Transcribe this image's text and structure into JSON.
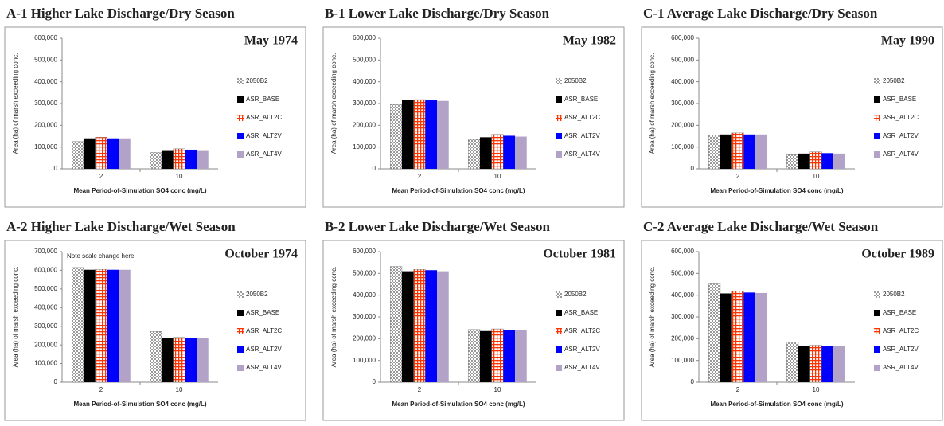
{
  "chart_data": [
    {
      "type": "bar",
      "panel_title": "A-1  Higher Lake Discharge/Dry Season",
      "title": "May 1974",
      "ylabel": "Area (ha) of marsh exceeding conc.",
      "xlabel": "Mean Period-of-Simulation SO4 conc (mg/L)",
      "categories": [
        "2",
        "10"
      ],
      "series": [
        {
          "name": "2050B2",
          "color": "#9a9a9a",
          "pattern": "checker",
          "values": [
            125000,
            75000
          ]
        },
        {
          "name": "ASR_BASE",
          "color": "#000000",
          "values": [
            140000,
            82000
          ]
        },
        {
          "name": "ASR_ALT2C",
          "color": "#ff3300",
          "pattern": "grid",
          "values": [
            145000,
            92000
          ]
        },
        {
          "name": "ASR_ALT2V",
          "color": "#0000ff",
          "values": [
            140000,
            88000
          ]
        },
        {
          "name": "ASR_ALT4V",
          "color": "#b3a2c7",
          "values": [
            140000,
            82000
          ]
        }
      ],
      "ylim": [
        0,
        600000
      ],
      "yticks": [
        0,
        {
          "value": 100000,
          "label": "100,000"
        },
        {
          "value": 200000,
          "label": "200,000"
        },
        {
          "value": 300000,
          "label": "300,000"
        },
        {
          "value": 400000,
          "label": "400,000"
        },
        {
          "value": 500000,
          "label": "500,000"
        },
        {
          "value": 600000,
          "label": "600,000"
        }
      ]
    },
    {
      "type": "bar",
      "panel_title": "B-1  Lower Lake Discharge/Dry Season",
      "title": "May 1982",
      "ylabel": "Area (ha) of marsh exceeding conc.",
      "xlabel": "Mean Period-of-Simulation SO4 conc (mg/L)",
      "categories": [
        "2",
        "10"
      ],
      "series": [
        {
          "name": "2050B2",
          "color": "#9a9a9a",
          "pattern": "checker",
          "values": [
            295000,
            135000
          ]
        },
        {
          "name": "ASR_BASE",
          "color": "#000000",
          "values": [
            315000,
            145000
          ]
        },
        {
          "name": "ASR_ALT2C",
          "color": "#ff3300",
          "pattern": "grid",
          "values": [
            318000,
            158000
          ]
        },
        {
          "name": "ASR_ALT2V",
          "color": "#0000ff",
          "values": [
            315000,
            152000
          ]
        },
        {
          "name": "ASR_ALT4V",
          "color": "#b3a2c7",
          "values": [
            312000,
            148000
          ]
        }
      ],
      "ylim": [
        0,
        600000
      ],
      "yticks": [
        0,
        {
          "value": 100000,
          "label": "100,000"
        },
        {
          "value": 200000,
          "label": "200,000"
        },
        {
          "value": 300000,
          "label": "300,000"
        },
        {
          "value": 400000,
          "label": "400,000"
        },
        {
          "value": 500000,
          "label": "500,000"
        },
        {
          "value": 600000,
          "label": "600,000"
        }
      ]
    },
    {
      "type": "bar",
      "panel_title": "C-1  Average Lake Discharge/Dry Season",
      "title": "May 1990",
      "ylabel": "Area (ha) of marsh exceeding conc.",
      "xlabel": "Mean Period-of-Simulation SO4 conc (mg/L)",
      "categories": [
        "2",
        "10"
      ],
      "series": [
        {
          "name": "2050B2",
          "color": "#9a9a9a",
          "pattern": "checker",
          "values": [
            155000,
            65000
          ]
        },
        {
          "name": "ASR_BASE",
          "color": "#000000",
          "values": [
            158000,
            70000
          ]
        },
        {
          "name": "ASR_ALT2C",
          "color": "#ff3300",
          "pattern": "grid",
          "values": [
            165000,
            78000
          ]
        },
        {
          "name": "ASR_ALT2V",
          "color": "#0000ff",
          "values": [
            158000,
            72000
          ]
        },
        {
          "name": "ASR_ALT4V",
          "color": "#b3a2c7",
          "values": [
            158000,
            70000
          ]
        }
      ],
      "ylim": [
        0,
        600000
      ],
      "yticks": [
        0,
        {
          "value": 100000,
          "label": "100,000"
        },
        {
          "value": 200000,
          "label": "200,000"
        },
        {
          "value": 300000,
          "label": "300,000"
        },
        {
          "value": 400000,
          "label": "400,000"
        },
        {
          "value": 500000,
          "label": "500,000"
        },
        {
          "value": 600000,
          "label": "600,000"
        }
      ]
    },
    {
      "type": "bar",
      "panel_title": "A-2  Higher Lake Discharge/Wet Season",
      "title": "October 1974",
      "annotation": "Note scale change here",
      "ylabel": "Area (ha) of marsh exceeding conc.",
      "xlabel": "Mean Period-of-Simulation SO4 conc (mg/L)",
      "categories": [
        "2",
        "10"
      ],
      "series": [
        {
          "name": "2050B2",
          "color": "#9a9a9a",
          "pattern": "checker",
          "values": [
            615000,
            272000
          ]
        },
        {
          "name": "ASR_BASE",
          "color": "#000000",
          "values": [
            603000,
            238000
          ]
        },
        {
          "name": "ASR_ALT2C",
          "color": "#ff3300",
          "pattern": "grid",
          "values": [
            605000,
            240000
          ]
        },
        {
          "name": "ASR_ALT2V",
          "color": "#0000ff",
          "values": [
            603000,
            237000
          ]
        },
        {
          "name": "ASR_ALT4V",
          "color": "#b3a2c7",
          "values": [
            603000,
            235000
          ]
        }
      ],
      "ylim": [
        0,
        700000
      ],
      "yticks": [
        0,
        {
          "value": 100000,
          "label": "100,000"
        },
        {
          "value": 200000,
          "label": "200,000"
        },
        {
          "value": 300000,
          "label": "300,000"
        },
        {
          "value": 400000,
          "label": "400,000"
        },
        {
          "value": 500000,
          "label": "500,000"
        },
        {
          "value": 600000,
          "label": "600,000"
        },
        {
          "value": 700000,
          "label": "700,000"
        }
      ]
    },
    {
      "type": "bar",
      "panel_title": "B-2  Lower Lake Discharge/Wet Season",
      "title": "October 1981",
      "ylabel": "Area (ha) of marsh exceeding conc.",
      "xlabel": "Mean Period-of-Simulation SO4 conc (mg/L)",
      "categories": [
        "2",
        "10"
      ],
      "series": [
        {
          "name": "2050B2",
          "color": "#9a9a9a",
          "pattern": "checker",
          "values": [
            532000,
            242000
          ]
        },
        {
          "name": "ASR_BASE",
          "color": "#000000",
          "values": [
            510000,
            235000
          ]
        },
        {
          "name": "ASR_ALT2C",
          "color": "#ff3300",
          "pattern": "grid",
          "values": [
            518000,
            245000
          ]
        },
        {
          "name": "ASR_ALT2V",
          "color": "#0000ff",
          "values": [
            515000,
            238000
          ]
        },
        {
          "name": "ASR_ALT4V",
          "color": "#b3a2c7",
          "values": [
            510000,
            238000
          ]
        }
      ],
      "ylim": [
        0,
        600000
      ],
      "yticks": [
        0,
        {
          "value": 100000,
          "label": "100,000"
        },
        {
          "value": 200000,
          "label": "200,000"
        },
        {
          "value": 300000,
          "label": "300,000"
        },
        {
          "value": 400000,
          "label": "400,000"
        },
        {
          "value": 500000,
          "label": "500,000"
        },
        {
          "value": 600000,
          "label": "600,000"
        }
      ]
    },
    {
      "type": "bar",
      "panel_title": "C-2  Average Lake Discharge/Wet Season",
      "title": "October 1989",
      "ylabel": "Area (ha) of marsh exceeding conc.",
      "xlabel": "Mean Period-of-Simulation SO4 conc (mg/L)",
      "categories": [
        "2",
        "10"
      ],
      "series": [
        {
          "name": "2050B2",
          "color": "#9a9a9a",
          "pattern": "checker",
          "values": [
            452000,
            185000
          ]
        },
        {
          "name": "ASR_BASE",
          "color": "#000000",
          "values": [
            408000,
            168000
          ]
        },
        {
          "name": "ASR_ALT2C",
          "color": "#ff3300",
          "pattern": "grid",
          "values": [
            420000,
            170000
          ]
        },
        {
          "name": "ASR_ALT2V",
          "color": "#0000ff",
          "values": [
            412000,
            168000
          ]
        },
        {
          "name": "ASR_ALT4V",
          "color": "#b3a2c7",
          "values": [
            410000,
            165000
          ]
        }
      ],
      "ylim": [
        0,
        600000
      ],
      "yticks": [
        0,
        {
          "value": 100000,
          "label": "100,000"
        },
        {
          "value": 200000,
          "label": "200,000"
        },
        {
          "value": 300000,
          "label": "300,000"
        },
        {
          "value": 400000,
          "label": "400,000"
        },
        {
          "value": 500000,
          "label": "500,000"
        },
        {
          "value": 600000,
          "label": "600,000"
        }
      ]
    }
  ]
}
